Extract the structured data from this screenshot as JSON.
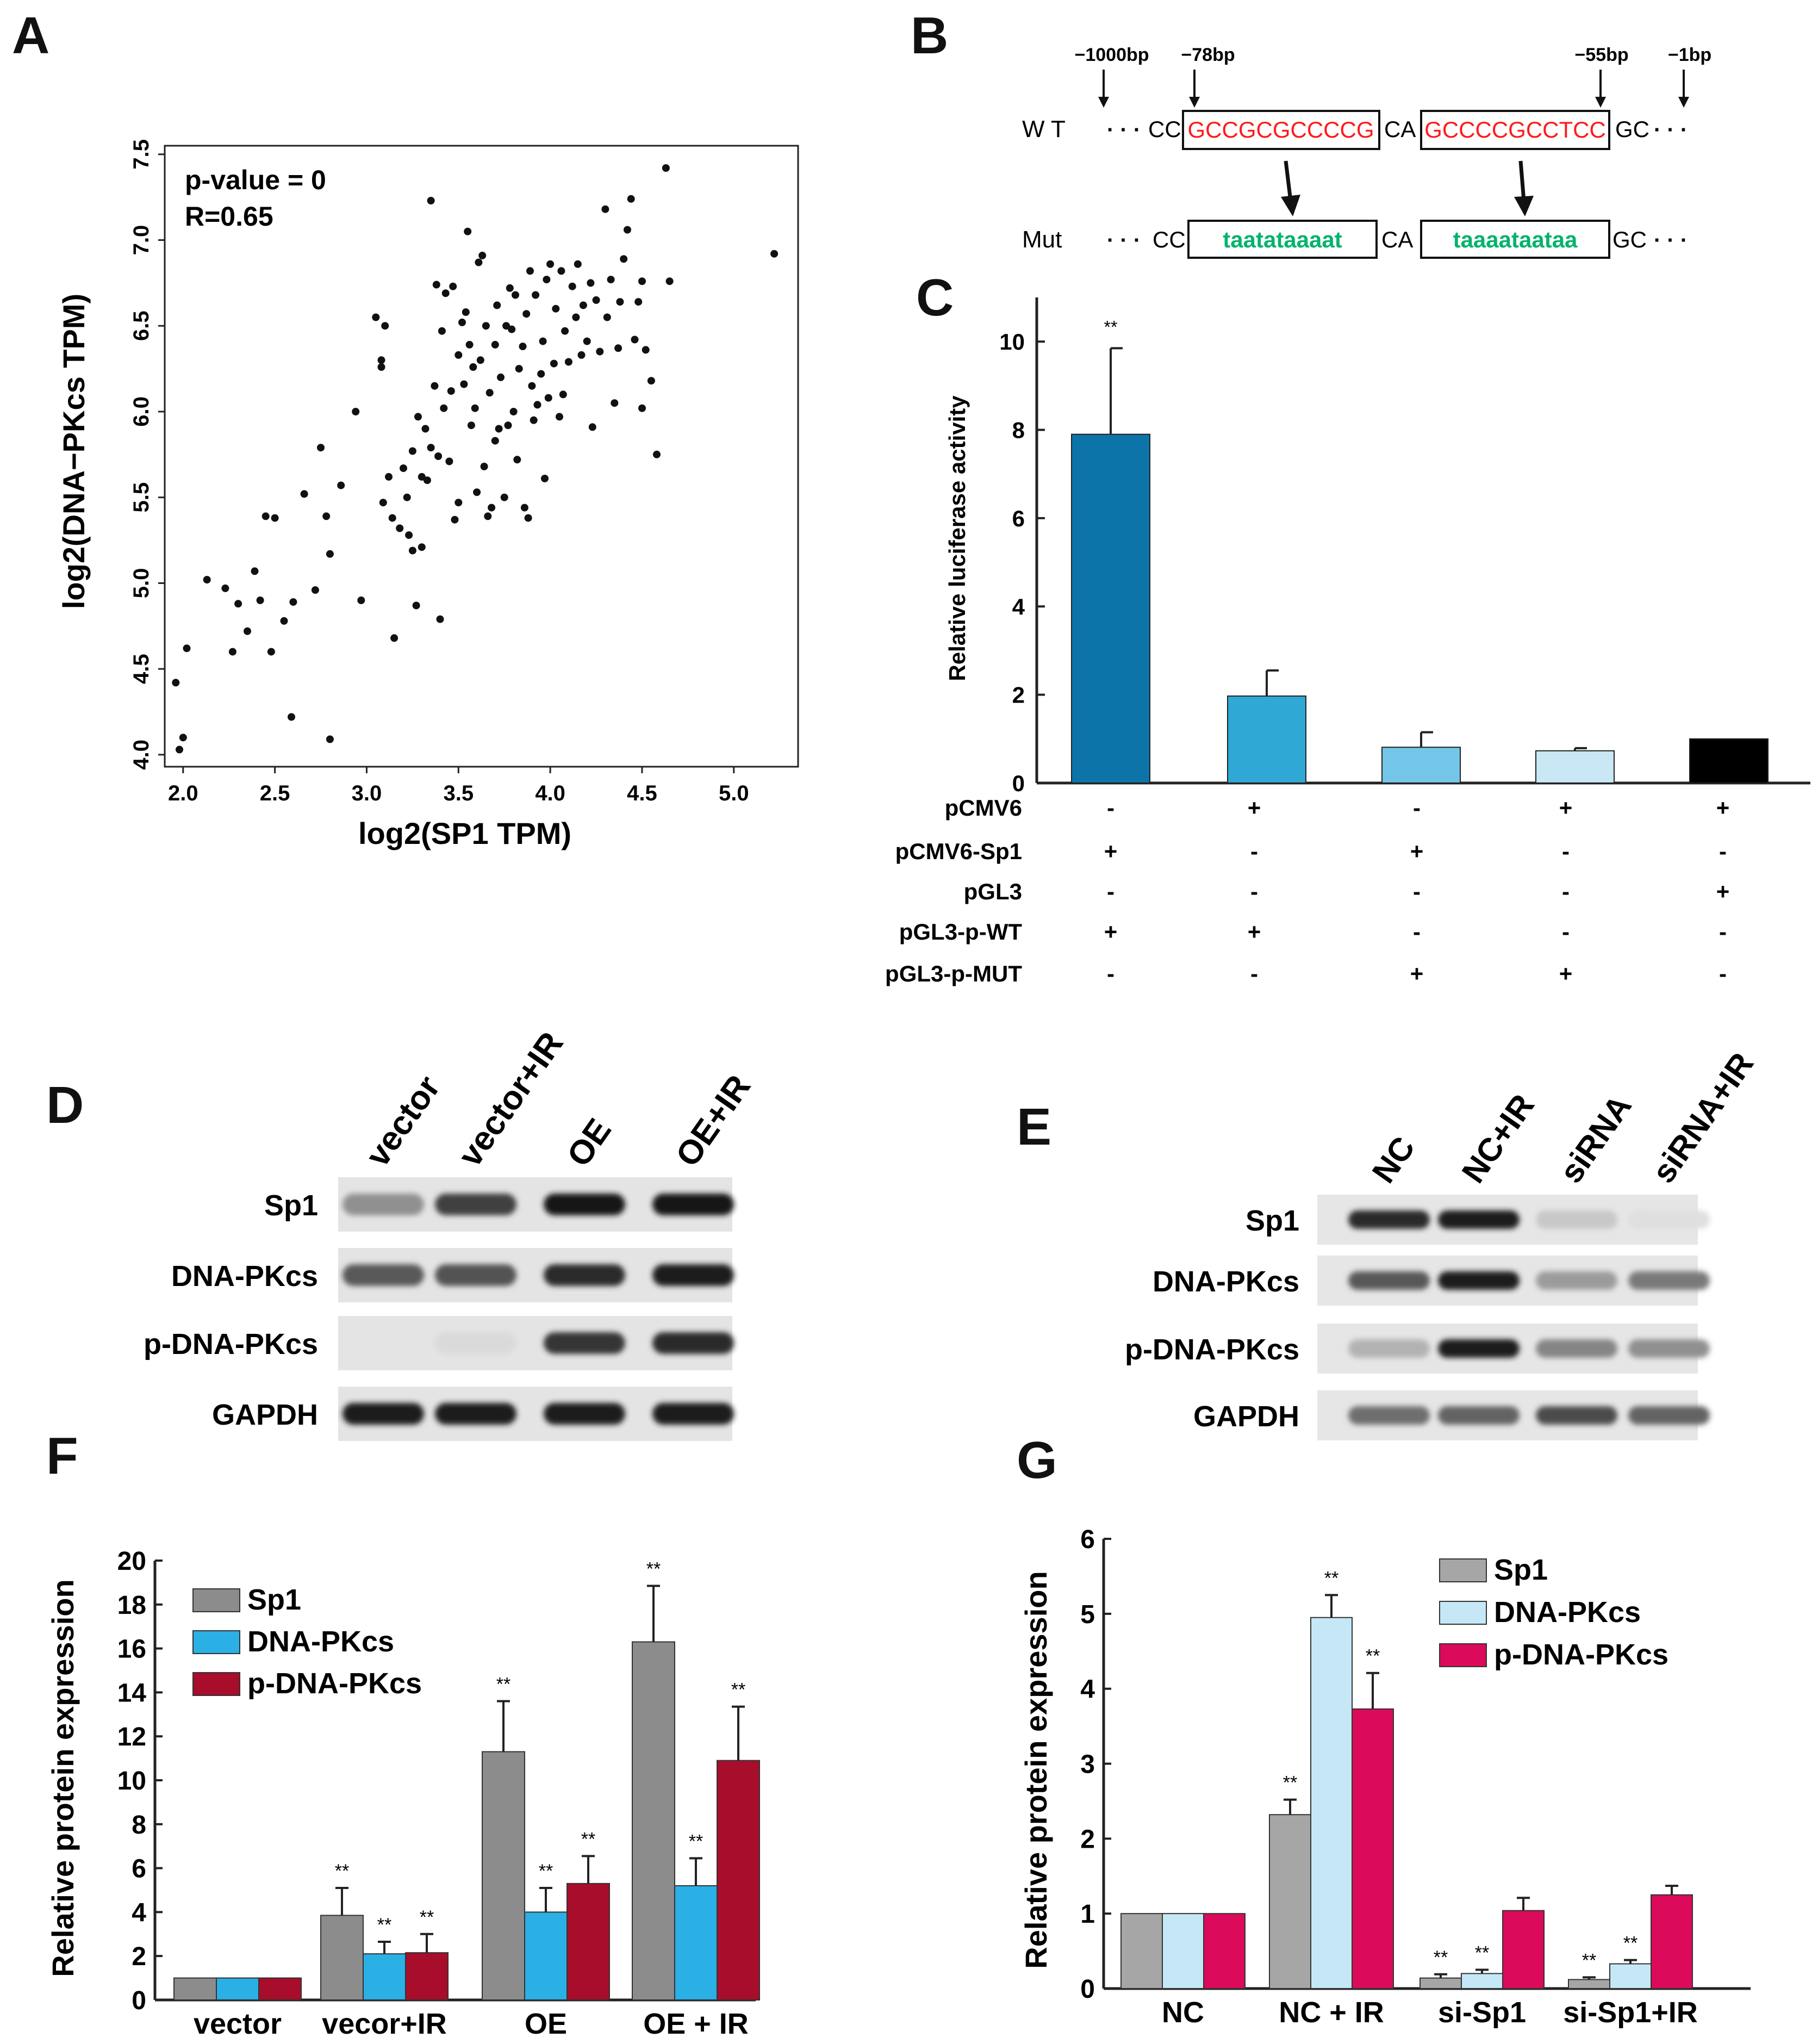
{
  "panel_labels": {
    "A": "A",
    "B": "B",
    "C": "C",
    "D": "D",
    "E": "E",
    "F": "F",
    "G": "G"
  },
  "colors": {
    "dot": "#111111",
    "red_seq": "#ff1a1a",
    "green_seq": "#00b36b",
    "c_bar1": "#0d74a9",
    "c_bar2": "#2fa8d6",
    "c_bar3": "#74c6e8",
    "c_bar4": "#c9e7f4",
    "c_bar5": "#000000",
    "f_sp1": "#8c8c8c",
    "f_dna": "#2ab0e4",
    "f_pdna": "#a80d2b",
    "g_sp1": "#a6a6a6",
    "g_dna": "#c6e8f6",
    "g_pdna": "#dc0a5a"
  },
  "panel_b": {
    "positions": [
      "−1000bp",
      "−78bp",
      "−55bp",
      "−1bp"
    ],
    "wt_label": "W T",
    "mut_label": "Mut",
    "dots": "· · ·",
    "cc": "CC",
    "ca": "CA",
    "gc": "GC",
    "wt_seq1": "GCCGCGCCCCG",
    "wt_seq2": "GCCCCGCCTCC",
    "mut_seq1": "taatataaaat",
    "mut_seq2": "taaaataataa"
  },
  "chart_data": [
    {
      "id": "A",
      "type": "scatter",
      "title": "",
      "xlabel": "log2(SP1 TPM)",
      "ylabel": "log2(DNA−PKcs TPM)",
      "xlim": [
        1.9,
        5.35
      ],
      "ylim": [
        3.93,
        7.55
      ],
      "xticks": [
        "2.0",
        "2.5",
        "3.0",
        "3.5",
        "4.0",
        "4.5",
        "5.0"
      ],
      "yticks": [
        "4.0",
        "4.5",
        "5.0",
        "5.5",
        "6.0",
        "6.5",
        "7.0",
        "7.5"
      ],
      "annotations": [
        "p-value = 0",
        "R=0.65"
      ],
      "points": [
        [
          1.96,
          4.42
        ],
        [
          1.98,
          4.03
        ],
        [
          2.0,
          4.1
        ],
        [
          2.02,
          4.62
        ],
        [
          2.13,
          5.02
        ],
        [
          2.23,
          4.97
        ],
        [
          2.27,
          4.6
        ],
        [
          2.3,
          4.88
        ],
        [
          2.35,
          4.72
        ],
        [
          2.39,
          5.07
        ],
        [
          2.42,
          4.9
        ],
        [
          2.45,
          5.39
        ],
        [
          2.48,
          4.6
        ],
        [
          2.5,
          5.38
        ],
        [
          2.55,
          4.78
        ],
        [
          2.59,
          4.22
        ],
        [
          2.6,
          4.89
        ],
        [
          2.66,
          5.52
        ],
        [
          2.72,
          4.96
        ],
        [
          2.75,
          5.79
        ],
        [
          2.78,
          5.39
        ],
        [
          2.8,
          4.09
        ],
        [
          2.8,
          5.17
        ],
        [
          2.86,
          5.57
        ],
        [
          2.94,
          6.0
        ],
        [
          2.97,
          4.9
        ],
        [
          3.05,
          6.55
        ],
        [
          3.08,
          6.3
        ],
        [
          3.08,
          6.26
        ],
        [
          3.09,
          5.47
        ],
        [
          3.1,
          6.5
        ],
        [
          3.12,
          5.62
        ],
        [
          3.14,
          5.38
        ],
        [
          3.15,
          4.68
        ],
        [
          3.18,
          5.32
        ],
        [
          3.2,
          5.67
        ],
        [
          3.22,
          5.5
        ],
        [
          3.23,
          5.28
        ],
        [
          3.25,
          5.77
        ],
        [
          3.25,
          5.19
        ],
        [
          3.27,
          4.87
        ],
        [
          3.28,
          5.97
        ],
        [
          3.3,
          5.62
        ],
        [
          3.3,
          5.21
        ],
        [
          3.32,
          5.9
        ],
        [
          3.33,
          5.6
        ],
        [
          3.35,
          7.23
        ],
        [
          3.35,
          5.79
        ],
        [
          3.37,
          6.15
        ],
        [
          3.38,
          6.74
        ],
        [
          3.39,
          5.74
        ],
        [
          3.4,
          4.79
        ],
        [
          3.41,
          6.47
        ],
        [
          3.42,
          6.02
        ],
        [
          3.43,
          6.69
        ],
        [
          3.45,
          5.71
        ],
        [
          3.46,
          6.12
        ],
        [
          3.47,
          6.73
        ],
        [
          3.48,
          5.37
        ],
        [
          3.5,
          6.33
        ],
        [
          3.5,
          5.47
        ],
        [
          3.52,
          6.52
        ],
        [
          3.53,
          6.16
        ],
        [
          3.54,
          6.58
        ],
        [
          3.55,
          7.05
        ],
        [
          3.56,
          6.39
        ],
        [
          3.57,
          5.92
        ],
        [
          3.58,
          6.26
        ],
        [
          3.59,
          6.02
        ],
        [
          3.6,
          5.53
        ],
        [
          3.61,
          6.87
        ],
        [
          3.62,
          6.3
        ],
        [
          3.63,
          6.91
        ],
        [
          3.64,
          5.68
        ],
        [
          3.65,
          6.5
        ],
        [
          3.66,
          5.39
        ],
        [
          3.67,
          6.11
        ],
        [
          3.68,
          5.44
        ],
        [
          3.7,
          6.39
        ],
        [
          3.7,
          5.83
        ],
        [
          3.71,
          6.62
        ],
        [
          3.72,
          5.9
        ],
        [
          3.73,
          6.2
        ],
        [
          3.75,
          5.5
        ],
        [
          3.76,
          6.5
        ],
        [
          3.77,
          5.92
        ],
        [
          3.78,
          6.72
        ],
        [
          3.79,
          6.48
        ],
        [
          3.8,
          6.0
        ],
        [
          3.81,
          6.68
        ],
        [
          3.82,
          5.72
        ],
        [
          3.83,
          6.25
        ],
        [
          3.85,
          6.38
        ],
        [
          3.86,
          5.44
        ],
        [
          3.87,
          6.57
        ],
        [
          3.88,
          5.38
        ],
        [
          3.89,
          6.82
        ],
        [
          3.9,
          6.15
        ],
        [
          3.91,
          5.95
        ],
        [
          3.92,
          6.68
        ],
        [
          3.93,
          6.04
        ],
        [
          3.95,
          6.22
        ],
        [
          3.96,
          6.41
        ],
        [
          3.97,
          5.61
        ],
        [
          3.98,
          6.77
        ],
        [
          3.99,
          6.08
        ],
        [
          4.0,
          6.86
        ],
        [
          4.02,
          6.28
        ],
        [
          4.03,
          6.6
        ],
        [
          4.05,
          5.97
        ],
        [
          4.06,
          6.82
        ],
        [
          4.07,
          6.1
        ],
        [
          4.08,
          6.47
        ],
        [
          4.1,
          6.29
        ],
        [
          4.12,
          6.73
        ],
        [
          4.14,
          6.55
        ],
        [
          4.15,
          6.86
        ],
        [
          4.17,
          6.33
        ],
        [
          4.18,
          6.62
        ],
        [
          4.2,
          6.41
        ],
        [
          4.22,
          6.75
        ],
        [
          4.23,
          5.91
        ],
        [
          4.25,
          6.65
        ],
        [
          4.27,
          6.35
        ],
        [
          4.3,
          7.18
        ],
        [
          4.31,
          6.55
        ],
        [
          4.33,
          6.77
        ],
        [
          4.35,
          6.05
        ],
        [
          4.37,
          6.37
        ],
        [
          4.38,
          6.64
        ],
        [
          4.4,
          6.89
        ],
        [
          4.42,
          7.06
        ],
        [
          4.44,
          7.24
        ],
        [
          4.46,
          6.42
        ],
        [
          4.48,
          6.64
        ],
        [
          4.5,
          6.76
        ],
        [
          4.5,
          6.02
        ],
        [
          4.52,
          6.36
        ],
        [
          4.55,
          6.18
        ],
        [
          4.58,
          5.75
        ],
        [
          4.63,
          7.42
        ],
        [
          4.65,
          6.76
        ],
        [
          5.22,
          6.92
        ]
      ]
    },
    {
      "id": "C",
      "type": "bar",
      "ylabel": "Relative luciferase activity",
      "ylim": [
        0,
        11
      ],
      "yticks": [
        "0",
        "2",
        "4",
        "6",
        "8",
        "10"
      ],
      "values": [
        7.9,
        1.97,
        0.81,
        0.73,
        1.0
      ],
      "errors": [
        1.95,
        0.58,
        0.34,
        0.06,
        0.0
      ],
      "sig": [
        "**",
        "",
        "",
        "",
        ""
      ],
      "row_labels": [
        "pCMV6",
        "pCMV6-Sp1",
        "pGL3",
        "pGL3-p-WT",
        "pGL3-p-MUT"
      ],
      "row_marks": [
        [
          "-",
          "+",
          "-",
          "+",
          "+"
        ],
        [
          "+",
          "-",
          "+",
          "-",
          "-"
        ],
        [
          "-",
          "-",
          "-",
          "-",
          "+"
        ],
        [
          "+",
          "+",
          "-",
          "-",
          "-"
        ],
        [
          "-",
          "-",
          "+",
          "+",
          "-"
        ]
      ]
    },
    {
      "id": "F",
      "type": "bar",
      "ylabel": "Relative protein expression",
      "ylim": [
        0,
        20
      ],
      "yticks": [
        "0",
        "2",
        "4",
        "6",
        "8",
        "10",
        "12",
        "14",
        "16",
        "18",
        "20"
      ],
      "categories": [
        "vector",
        "vecor+IR",
        "OE",
        "OE + IR"
      ],
      "series": [
        {
          "name": "Sp1",
          "values": [
            1.0,
            3.85,
            11.3,
            16.3
          ],
          "errors": [
            0,
            1.25,
            2.3,
            2.55
          ],
          "sig": [
            "",
            "**",
            "**",
            "**"
          ]
        },
        {
          "name": "DNA-PKcs",
          "values": [
            1.0,
            2.1,
            4.0,
            5.2
          ],
          "errors": [
            0,
            0.55,
            1.1,
            1.25
          ],
          "sig": [
            "",
            "**",
            "**",
            "**"
          ]
        },
        {
          "name": "p-DNA-PKcs",
          "values": [
            1.0,
            2.15,
            5.3,
            10.9
          ],
          "errors": [
            0,
            0.85,
            1.25,
            2.45
          ],
          "sig": [
            "",
            "**",
            "**",
            "**"
          ]
        }
      ]
    },
    {
      "id": "G",
      "type": "bar",
      "ylabel": "Relative protein expression",
      "ylim": [
        0,
        6
      ],
      "yticks": [
        "0",
        "1",
        "2",
        "3",
        "4",
        "5",
        "6"
      ],
      "categories": [
        "NC",
        "NC + IR",
        "si-Sp1",
        "si-Sp1+IR"
      ],
      "series": [
        {
          "name": "Sp1",
          "values": [
            1.0,
            2.32,
            0.14,
            0.12
          ],
          "errors": [
            0,
            0.2,
            0.05,
            0.03
          ],
          "sig": [
            "",
            "**",
            "**",
            "**"
          ]
        },
        {
          "name": "DNA-PKcs",
          "values": [
            1.0,
            4.95,
            0.2,
            0.33
          ],
          "errors": [
            0,
            0.3,
            0.05,
            0.05
          ],
          "sig": [
            "",
            "**",
            "**",
            "**"
          ]
        },
        {
          "name": "p-DNA-PKcs",
          "values": [
            1.0,
            3.73,
            1.04,
            1.25
          ],
          "errors": [
            0,
            0.48,
            0.17,
            0.12
          ],
          "sig": [
            "",
            "**",
            "",
            ""
          ]
        }
      ]
    }
  ],
  "panel_d": {
    "lanes": [
      "vector",
      "vector+IR",
      "OE",
      "OE+IR"
    ],
    "rows": [
      "Sp1",
      "DNA-PKcs",
      "p-DNA-PKcs",
      "GAPDH"
    ],
    "intensity": [
      [
        0.45,
        0.8,
        1.0,
        1.0
      ],
      [
        0.7,
        0.72,
        0.9,
        0.95
      ],
      [
        0.0,
        0.12,
        0.85,
        0.9
      ],
      [
        0.95,
        0.95,
        0.95,
        0.95
      ]
    ]
  },
  "panel_e": {
    "lanes": [
      "NC",
      "NC+IR",
      "siRNA",
      "siRNA+IR"
    ],
    "rows": [
      "Sp1",
      "DNA-PKcs",
      "p-DNA-PKcs",
      "GAPDH"
    ],
    "intensity": [
      [
        0.9,
        0.95,
        0.2,
        0.1
      ],
      [
        0.7,
        0.95,
        0.4,
        0.55
      ],
      [
        0.3,
        0.95,
        0.5,
        0.45
      ],
      [
        0.6,
        0.65,
        0.75,
        0.65
      ]
    ]
  }
}
